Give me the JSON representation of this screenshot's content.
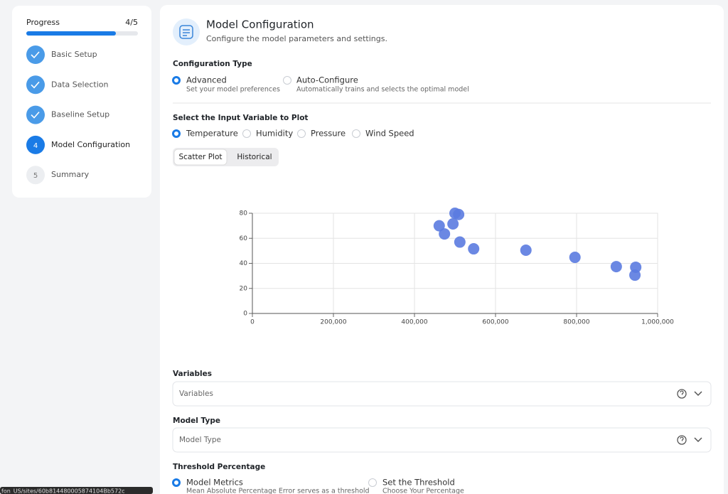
{
  "sidebar": {
    "progress_label": "Progress",
    "progress_count": "4/5",
    "steps": [
      {
        "label": "Basic Setup",
        "status": "done"
      },
      {
        "label": "Data Selection",
        "status": "done"
      },
      {
        "label": "Baseline Setup",
        "status": "done"
      },
      {
        "number": "4",
        "label": "Model Configuration",
        "status": "current"
      },
      {
        "number": "5",
        "label": "Summary",
        "status": "pending"
      }
    ]
  },
  "header": {
    "title": "Model Configuration",
    "subtitle": "Configure the model parameters and settings."
  },
  "configuration_type": {
    "title": "Configuration Type",
    "options": [
      {
        "label": "Advanced",
        "description": "Set your model preferences",
        "selected": true
      },
      {
        "label": "Auto-Configure",
        "description": "Automatically trains and selects the optimal model",
        "selected": false
      }
    ]
  },
  "input_variable": {
    "title": "Select the Input Variable to Plot",
    "options": [
      {
        "label": "Temperature",
        "selected": true
      },
      {
        "label": "Humidity",
        "selected": false
      },
      {
        "label": "Pressure",
        "selected": false
      },
      {
        "label": "Wind Speed",
        "selected": false
      }
    ]
  },
  "view_tabs": [
    {
      "label": "Scatter Plot",
      "selected": true
    },
    {
      "label": "Historical",
      "selected": false
    }
  ],
  "chart_data": {
    "type": "scatter",
    "color": "#5b7be0",
    "x": [
      461000,
      474000,
      495000,
      500000,
      509000,
      512000,
      546000,
      675000,
      796000,
      898000,
      946000,
      944000
    ],
    "values": [
      70,
      63.5,
      71.5,
      80,
      79,
      57,
      51.6,
      50.5,
      44.8,
      37.4,
      36.9,
      30.6
    ],
    "xlim": [
      0,
      1000000
    ],
    "ylim": [
      0,
      80
    ],
    "xticks": [
      0,
      {
        "value": 200000,
        "label": "200,000"
      },
      {
        "value": 400000,
        "label": "400,000"
      },
      {
        "value": 600000,
        "label": "600,000"
      },
      {
        "value": 800000,
        "label": "800,000"
      },
      {
        "value": 1000000,
        "label": "1,000,000"
      }
    ],
    "yticks": [
      0,
      20,
      40,
      60,
      80
    ],
    "grid": true
  },
  "variables": {
    "title": "Variables",
    "placeholder": "Variables"
  },
  "model_type": {
    "title": "Model Type",
    "placeholder": "Model Type"
  },
  "threshold": {
    "title": "Threshold Percentage",
    "options": [
      {
        "label": "Model Metrics",
        "description": "Mean Absolute Percentage Error serves as a threshold",
        "selected": true
      },
      {
        "label": "Set the Threshold",
        "description": "Choose Your Percentage",
        "selected": false
      }
    ]
  },
  "status_bar": {
    "url": "fon_US/sites/60b814480005874104Bb572c"
  }
}
